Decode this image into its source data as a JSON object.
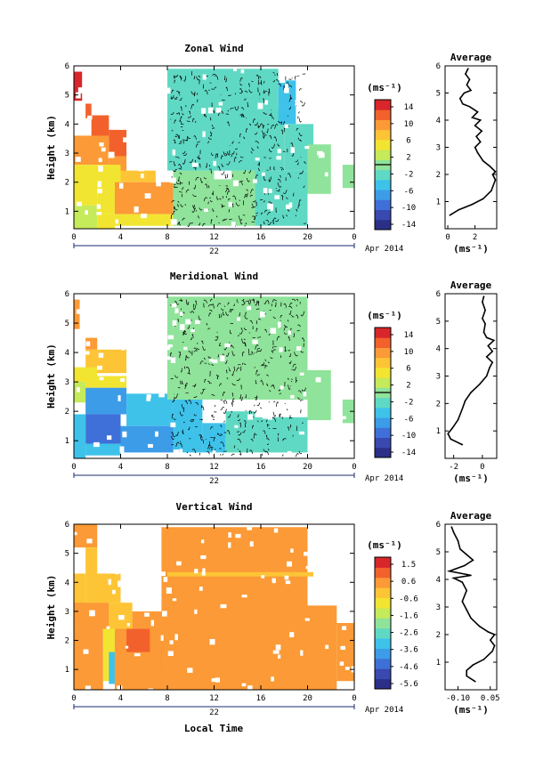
{
  "figure": {
    "date_label": "Apr 2014",
    "xlabel": "Local Time",
    "day_label": "22"
  },
  "chart_data": [
    {
      "type": "heatmap",
      "title": "Zonal Wind",
      "ylabel": "Height (km)",
      "xlabel": "Local Time",
      "x_ticks": [
        "0",
        "4",
        "8",
        "12",
        "16",
        "20",
        "0"
      ],
      "xlim": [
        0,
        24
      ],
      "y_ticks": [
        "1",
        "2",
        "3",
        "4",
        "5",
        "6"
      ],
      "ylim": [
        0.4,
        6.0
      ],
      "colorbar": {
        "unit": "(ms⁻¹)",
        "ticks": [
          "14",
          "10",
          "6",
          "2",
          "-2",
          "-6",
          "-10",
          "-14"
        ],
        "range": [
          -16,
          16
        ]
      },
      "regions": [
        {
          "t": [
            0.0,
            0.7
          ],
          "h": [
            4.8,
            5.8
          ],
          "v": 14
        },
        {
          "t": [
            1.0,
            1.5
          ],
          "h": [
            4.2,
            4.7
          ],
          "v": 13
        },
        {
          "t": [
            1.5,
            3.0
          ],
          "h": [
            3.5,
            4.3
          ],
          "v": 12
        },
        {
          "t": [
            3.0,
            4.5
          ],
          "h": [
            2.8,
            3.8
          ],
          "v": 13
        },
        {
          "t": [
            0.0,
            3.0
          ],
          "h": [
            2.6,
            3.6
          ],
          "v": 9
        },
        {
          "t": [
            3.0,
            4.5
          ],
          "h": [
            2.2,
            2.9
          ],
          "v": 9
        },
        {
          "t": [
            0.0,
            4.0
          ],
          "h": [
            1.9,
            2.6
          ],
          "v": 6
        },
        {
          "t": [
            4.0,
            7.0
          ],
          "h": [
            2.0,
            2.4
          ],
          "v": 7
        },
        {
          "t": [
            0.0,
            2.0
          ],
          "h": [
            1.2,
            1.9
          ],
          "v": 5
        },
        {
          "t": [
            2.0,
            3.5
          ],
          "h": [
            0.9,
            1.9
          ],
          "v": 6
        },
        {
          "t": [
            3.5,
            8.5
          ],
          "h": [
            0.9,
            2.0
          ],
          "v": 9
        },
        {
          "t": [
            4.5,
            7.0
          ],
          "h": [
            1.3,
            1.9
          ],
          "v": 10
        },
        {
          "t": [
            0.0,
            2.0
          ],
          "h": [
            0.4,
            1.2
          ],
          "v": 3
        },
        {
          "t": [
            2.0,
            3.5
          ],
          "h": [
            0.4,
            0.9
          ],
          "v": 5
        },
        {
          "t": [
            3.5,
            8.5
          ],
          "h": [
            0.5,
            0.9
          ],
          "v": 6
        },
        {
          "t": [
            8.5,
            13.5
          ],
          "h": [
            0.5,
            2.1
          ],
          "v": 1
        },
        {
          "t": [
            8.5,
            12.0
          ],
          "h": [
            2.0,
            2.4
          ],
          "v": 0
        },
        {
          "t": [
            13.5,
            15.5
          ],
          "h": [
            0.5,
            2.4
          ],
          "v": -1
        },
        {
          "t": [
            8.0,
            18.0
          ],
          "h": [
            2.4,
            4.5
          ],
          "v": -2
        },
        {
          "t": [
            8.0,
            17.5
          ],
          "h": [
            4.5,
            5.9
          ],
          "v": -2
        },
        {
          "t": [
            17.5,
            19.0
          ],
          "h": [
            4.0,
            5.5
          ],
          "v": -4
        },
        {
          "t": [
            15.5,
            20.0
          ],
          "h": [
            0.5,
            2.4
          ],
          "v": -2
        },
        {
          "t": [
            18.0,
            20.5
          ],
          "h": [
            2.4,
            4.0
          ],
          "v": -2
        },
        {
          "t": [
            20.0,
            22.0
          ],
          "h": [
            1.6,
            3.3
          ],
          "v": -1
        },
        {
          "t": [
            23.0,
            24.0
          ],
          "h": [
            1.8,
            2.6
          ],
          "v": 0
        }
      ],
      "profile": {
        "title": "Average",
        "xlabel": "(ms⁻¹)",
        "x_ticks": [
          "0",
          "2"
        ],
        "xlim": [
          -0.2,
          3.6
        ],
        "ylim": [
          0,
          6.0
        ],
        "y_ticks": [
          "1",
          "2",
          "3",
          "4",
          "5",
          "6"
        ],
        "points": [
          {
            "x": 0.15,
            "y": 0.5
          },
          {
            "x": 0.8,
            "y": 0.7
          },
          {
            "x": 1.8,
            "y": 0.9
          },
          {
            "x": 2.6,
            "y": 1.1
          },
          {
            "x": 3.2,
            "y": 1.4
          },
          {
            "x": 3.5,
            "y": 1.8
          },
          {
            "x": 3.3,
            "y": 2.0
          },
          {
            "x": 3.5,
            "y": 2.1
          },
          {
            "x": 3.1,
            "y": 2.3
          },
          {
            "x": 2.6,
            "y": 2.5
          },
          {
            "x": 2.2,
            "y": 2.8
          },
          {
            "x": 2.0,
            "y": 3.0
          },
          {
            "x": 2.4,
            "y": 3.2
          },
          {
            "x": 2.1,
            "y": 3.4
          },
          {
            "x": 2.5,
            "y": 3.6
          },
          {
            "x": 2.0,
            "y": 3.8
          },
          {
            "x": 2.4,
            "y": 4.0
          },
          {
            "x": 1.8,
            "y": 4.1
          },
          {
            "x": 2.2,
            "y": 4.3
          },
          {
            "x": 1.6,
            "y": 4.5
          },
          {
            "x": 1.1,
            "y": 4.6
          },
          {
            "x": 0.9,
            "y": 4.8
          },
          {
            "x": 1.2,
            "y": 5.0
          },
          {
            "x": 1.7,
            "y": 5.1
          },
          {
            "x": 1.4,
            "y": 5.3
          },
          {
            "x": 1.6,
            "y": 5.5
          },
          {
            "x": 1.3,
            "y": 5.7
          },
          {
            "x": 1.5,
            "y": 5.9
          }
        ]
      }
    },
    {
      "type": "heatmap",
      "title": "Meridional Wind",
      "ylabel": "Height (km)",
      "xlabel": "Local Time",
      "x_ticks": [
        "0",
        "4",
        "8",
        "12",
        "16",
        "20",
        "0"
      ],
      "xlim": [
        0,
        24
      ],
      "y_ticks": [
        "1",
        "2",
        "3",
        "4",
        "5",
        "6"
      ],
      "ylim": [
        0.4,
        6.0
      ],
      "colorbar": {
        "unit": "(ms⁻¹)",
        "ticks": [
          "14",
          "10",
          "6",
          "2",
          "-2",
          "-6",
          "-10",
          "-14"
        ],
        "range": [
          -16,
          16
        ]
      },
      "regions": [
        {
          "t": [
            0.0,
            0.5
          ],
          "h": [
            4.8,
            5.8
          ],
          "v": 10
        },
        {
          "t": [
            1.0,
            2.0
          ],
          "h": [
            4.1,
            4.5
          ],
          "v": 9
        },
        {
          "t": [
            1.0,
            4.5
          ],
          "h": [
            3.3,
            4.1
          ],
          "v": 7
        },
        {
          "t": [
            0.0,
            2.0
          ],
          "h": [
            3.0,
            3.5
          ],
          "v": 4
        },
        {
          "t": [
            0.0,
            1.0
          ],
          "h": [
            2.3,
            3.0
          ],
          "v": 2
        },
        {
          "t": [
            1.0,
            4.5
          ],
          "h": [
            2.8,
            3.2
          ],
          "v": 5
        },
        {
          "t": [
            1.0,
            4.5
          ],
          "h": [
            1.9,
            2.8
          ],
          "v": -7
        },
        {
          "t": [
            4.5,
            8.5
          ],
          "h": [
            1.5,
            2.6
          ],
          "v": -5
        },
        {
          "t": [
            1.0,
            4.0
          ],
          "h": [
            0.9,
            1.9
          ],
          "v": -9
        },
        {
          "t": [
            4.0,
            8.5
          ],
          "h": [
            0.6,
            1.5
          ],
          "v": -7
        },
        {
          "t": [
            0.0,
            1.0
          ],
          "h": [
            0.4,
            1.9
          ],
          "v": -5
        },
        {
          "t": [
            1.0,
            4.0
          ],
          "h": [
            0.5,
            0.9
          ],
          "v": -6
        },
        {
          "t": [
            8.5,
            11.0
          ],
          "h": [
            0.6,
            2.4
          ],
          "v": -4
        },
        {
          "t": [
            11.0,
            13.0
          ],
          "h": [
            0.6,
            1.6
          ],
          "v": -4
        },
        {
          "t": [
            13.0,
            15.5
          ],
          "h": [
            0.6,
            2.0
          ],
          "v": -2
        },
        {
          "t": [
            15.5,
            20.0
          ],
          "h": [
            0.6,
            1.8
          ],
          "v": -2
        },
        {
          "t": [
            8.0,
            20.0
          ],
          "h": [
            2.4,
            5.9
          ],
          "v": 1
        },
        {
          "t": [
            20.0,
            22.0
          ],
          "h": [
            1.7,
            3.4
          ],
          "v": 1
        },
        {
          "t": [
            23.0,
            24.0
          ],
          "h": [
            1.6,
            2.4
          ],
          "v": 1
        }
      ],
      "profile": {
        "title": "Average",
        "xlabel": "(ms⁻¹)",
        "x_ticks": [
          "-2",
          "0"
        ],
        "xlim": [
          -2.6,
          1.0
        ],
        "ylim": [
          0,
          6.0
        ],
        "y_ticks": [
          "1",
          "2",
          "3",
          "4",
          "5",
          "6"
        ],
        "points": [
          {
            "x": -1.4,
            "y": 0.5
          },
          {
            "x": -2.2,
            "y": 0.7
          },
          {
            "x": -2.4,
            "y": 0.9
          },
          {
            "x": -2.1,
            "y": 1.1
          },
          {
            "x": -1.7,
            "y": 1.4
          },
          {
            "x": -1.4,
            "y": 1.8
          },
          {
            "x": -1.2,
            "y": 2.1
          },
          {
            "x": -0.8,
            "y": 2.4
          },
          {
            "x": -0.2,
            "y": 2.7
          },
          {
            "x": 0.3,
            "y": 3.0
          },
          {
            "x": 0.5,
            "y": 3.3
          },
          {
            "x": 0.7,
            "y": 3.5
          },
          {
            "x": 0.3,
            "y": 3.7
          },
          {
            "x": 0.7,
            "y": 3.9
          },
          {
            "x": 0.4,
            "y": 4.1
          },
          {
            "x": 0.8,
            "y": 4.3
          },
          {
            "x": 0.3,
            "y": 4.4
          },
          {
            "x": 0.1,
            "y": 4.6
          },
          {
            "x": 0.2,
            "y": 4.9
          },
          {
            "x": 0.0,
            "y": 5.1
          },
          {
            "x": 0.2,
            "y": 5.4
          },
          {
            "x": 0.0,
            "y": 5.7
          },
          {
            "x": 0.1,
            "y": 5.9
          }
        ]
      }
    },
    {
      "type": "heatmap",
      "title": "Vertical Wind",
      "ylabel": "Height (km)",
      "xlabel": "Local Time",
      "x_ticks": [
        "0",
        "4",
        "8",
        "12",
        "16",
        "20",
        "0"
      ],
      "xlim": [
        0,
        24
      ],
      "y_ticks": [
        "1",
        "2",
        "3",
        "4",
        "5",
        "6"
      ],
      "ylim": [
        0.3,
        6.0
      ],
      "colorbar": {
        "unit": "(ms⁻¹)",
        "ticks": [
          "1.5",
          "0.6",
          "-0.6",
          "-1.6",
          "-2.6",
          "-3.6",
          "-4.6",
          "-5.6"
        ],
        "range": [
          -6.0,
          2.0
        ]
      },
      "regions": [
        {
          "t": [
            0.0,
            2.0
          ],
          "h": [
            5.2,
            6.0
          ],
          "v": 0.2
        },
        {
          "t": [
            1.0,
            2.0
          ],
          "h": [
            4.3,
            5.2
          ],
          "v": 0.0
        },
        {
          "t": [
            0.0,
            1.0
          ],
          "h": [
            3.0,
            4.3
          ],
          "v": -0.4
        },
        {
          "t": [
            1.0,
            4.0
          ],
          "h": [
            3.3,
            4.3
          ],
          "v": -0.2
        },
        {
          "t": [
            0.0,
            3.0
          ],
          "h": [
            2.4,
            3.3
          ],
          "v": 0.2
        },
        {
          "t": [
            3.0,
            5.0
          ],
          "h": [
            2.4,
            3.3
          ],
          "v": 0.0
        },
        {
          "t": [
            0.0,
            2.5
          ],
          "h": [
            0.3,
            2.4
          ],
          "v": 0.4
        },
        {
          "t": [
            2.5,
            3.5
          ],
          "h": [
            0.6,
            2.4
          ],
          "v": -0.6
        },
        {
          "t": [
            3.0,
            3.5
          ],
          "h": [
            0.5,
            1.6
          ],
          "v": -3.0
        },
        {
          "t": [
            3.5,
            8.0
          ],
          "h": [
            0.3,
            2.4
          ],
          "v": 0.6
        },
        {
          "t": [
            4.5,
            6.5
          ],
          "h": [
            1.6,
            2.4
          ],
          "v": 1.0
        },
        {
          "t": [
            7.5,
            8.0
          ],
          "h": [
            1.0,
            1.7
          ],
          "v": 1.5
        },
        {
          "t": [
            5.0,
            8.0
          ],
          "h": [
            2.4,
            3.0
          ],
          "v": 0.5
        },
        {
          "t": [
            7.5,
            20.0
          ],
          "h": [
            0.3,
            5.9
          ],
          "v": 0.6
        },
        {
          "t": [
            8.0,
            20.5
          ],
          "h": [
            4.2,
            4.35
          ],
          "v": 0.1
        },
        {
          "t": [
            20.0,
            22.5
          ],
          "h": [
            0.3,
            3.2
          ],
          "v": 0.5
        },
        {
          "t": [
            22.5,
            24.0
          ],
          "h": [
            0.6,
            2.6
          ],
          "v": 0.4
        }
      ],
      "profile": {
        "title": "Average",
        "xlabel": "(ms⁻¹)",
        "x_ticks": [
          "-0.10",
          "0.05"
        ],
        "xlim": [
          -0.16,
          0.08
        ],
        "ylim": [
          0,
          6.0
        ],
        "y_ticks": [
          "1",
          "2",
          "3",
          "4",
          "5",
          "6"
        ],
        "points": [
          {
            "x": -0.02,
            "y": 0.3
          },
          {
            "x": -0.06,
            "y": 0.5
          },
          {
            "x": -0.06,
            "y": 0.7
          },
          {
            "x": -0.03,
            "y": 0.9
          },
          {
            "x": 0.02,
            "y": 1.1
          },
          {
            "x": 0.06,
            "y": 1.4
          },
          {
            "x": 0.07,
            "y": 1.6
          },
          {
            "x": 0.05,
            "y": 1.8
          },
          {
            "x": 0.07,
            "y": 2.0
          },
          {
            "x": 0.04,
            "y": 2.1
          },
          {
            "x": 0.0,
            "y": 2.3
          },
          {
            "x": -0.04,
            "y": 2.6
          },
          {
            "x": -0.06,
            "y": 2.9
          },
          {
            "x": -0.08,
            "y": 3.2
          },
          {
            "x": -0.06,
            "y": 3.6
          },
          {
            "x": -0.08,
            "y": 3.9
          },
          {
            "x": -0.12,
            "y": 4.05
          },
          {
            "x": -0.04,
            "y": 4.15
          },
          {
            "x": -0.14,
            "y": 4.3
          },
          {
            "x": -0.07,
            "y": 4.5
          },
          {
            "x": -0.03,
            "y": 4.7
          },
          {
            "x": -0.06,
            "y": 4.9
          },
          {
            "x": -0.09,
            "y": 5.1
          },
          {
            "x": -0.1,
            "y": 5.4
          },
          {
            "x": -0.12,
            "y": 5.7
          },
          {
            "x": -0.13,
            "y": 5.9
          }
        ]
      }
    }
  ]
}
